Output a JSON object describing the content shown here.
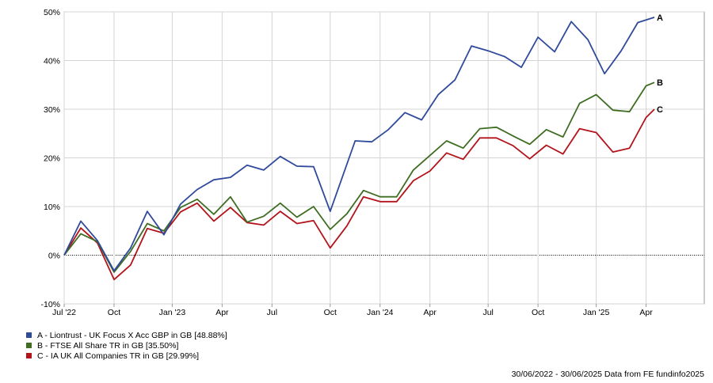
{
  "chart_data": {
    "type": "line",
    "title": "",
    "xlabel": "",
    "ylabel": "",
    "ylim": [
      -10,
      50
    ],
    "yticks": [
      -10,
      0,
      10,
      20,
      30,
      40,
      50
    ],
    "ytick_labels": [
      "-10%",
      "0%",
      "10%",
      "20%",
      "30%",
      "40%",
      "50%"
    ],
    "xtick_labels": [
      {
        "index": 0,
        "label": "Jul '22"
      },
      {
        "index": 6,
        "label": "Oct"
      },
      {
        "index": 13,
        "label": "Jan '23"
      },
      {
        "index": 19,
        "label": "Apr"
      },
      {
        "index": 25,
        "label": "Jul"
      },
      {
        "index": 32,
        "label": "Oct"
      },
      {
        "index": 38,
        "label": "Jan '24"
      },
      {
        "index": 44,
        "label": "Apr"
      },
      {
        "index": 51,
        "label": "Jul"
      },
      {
        "index": 57,
        "label": "Oct"
      },
      {
        "index": 64,
        "label": "Jan '25"
      },
      {
        "index": 70,
        "label": "Apr"
      }
    ],
    "x_count": 78,
    "grid": true,
    "legend_position": "bottom-left",
    "series": [
      {
        "name": "A - Liontrust - UK Focus X Acc GBP in GB [48.88%]",
        "end_label": "A",
        "color": "#2f4a9b",
        "points": [
          [
            0,
            0
          ],
          [
            2,
            7.0
          ],
          [
            4,
            3
          ],
          [
            6,
            -3.2
          ],
          [
            8,
            1.5
          ],
          [
            10,
            9.0
          ],
          [
            12,
            4.2
          ],
          [
            14,
            10.5
          ],
          [
            16,
            13.5
          ],
          [
            18,
            15.5
          ],
          [
            20,
            16.0
          ],
          [
            22,
            18.5
          ],
          [
            24,
            17.5
          ],
          [
            26,
            20.3
          ],
          [
            28,
            18.3
          ],
          [
            30,
            18.2
          ],
          [
            32,
            9.0
          ],
          [
            35,
            23.5
          ],
          [
            37,
            23.3
          ],
          [
            39,
            25.8
          ],
          [
            41,
            29.3
          ],
          [
            43,
            27.8
          ],
          [
            45,
            33.0
          ],
          [
            47,
            36.0
          ],
          [
            49,
            43.0
          ],
          [
            51,
            42.0
          ],
          [
            53,
            40.8
          ],
          [
            55,
            38.6
          ],
          [
            57,
            44.8
          ],
          [
            59,
            41.8
          ],
          [
            61,
            48.0
          ],
          [
            63,
            44.3
          ],
          [
            65,
            37.3
          ],
          [
            67,
            42.0
          ],
          [
            69,
            47.8
          ],
          [
            71,
            48.88
          ]
        ]
      },
      {
        "name": "B - FTSE All Share TR in GB [35.50%]",
        "end_label": "B",
        "color": "#3f6d22",
        "points": [
          [
            0,
            0
          ],
          [
            2,
            4.4
          ],
          [
            4,
            2.8
          ],
          [
            6,
            -3.5
          ],
          [
            8,
            0.8
          ],
          [
            10,
            6.5
          ],
          [
            12,
            5.0
          ],
          [
            14,
            9.8
          ],
          [
            16,
            11.5
          ],
          [
            18,
            8.4
          ],
          [
            20,
            12.0
          ],
          [
            22,
            6.8
          ],
          [
            24,
            8.0
          ],
          [
            26,
            10.7
          ],
          [
            28,
            7.8
          ],
          [
            30,
            10.0
          ],
          [
            32,
            5.3
          ],
          [
            34,
            8.5
          ],
          [
            36,
            13.3
          ],
          [
            38,
            12.0
          ],
          [
            40,
            12.0
          ],
          [
            42,
            17.5
          ],
          [
            44,
            20.5
          ],
          [
            46,
            23.5
          ],
          [
            48,
            22.0
          ],
          [
            50,
            26.0
          ],
          [
            52,
            26.3
          ],
          [
            54,
            24.5
          ],
          [
            56,
            22.8
          ],
          [
            58,
            25.8
          ],
          [
            60,
            24.3
          ],
          [
            62,
            31.2
          ],
          [
            64,
            33.0
          ],
          [
            66,
            29.8
          ],
          [
            68,
            29.5
          ],
          [
            70,
            34.8
          ],
          [
            71,
            35.5
          ]
        ]
      },
      {
        "name": "C - IA UK All Companies TR in GB [29.99%]",
        "end_label": "C",
        "color": "#b3141b",
        "points": [
          [
            0,
            0
          ],
          [
            2,
            5.6
          ],
          [
            4,
            2.5
          ],
          [
            6,
            -5.0
          ],
          [
            8,
            -2.0
          ],
          [
            10,
            5.5
          ],
          [
            12,
            4.5
          ],
          [
            14,
            8.9
          ],
          [
            16,
            10.7
          ],
          [
            18,
            7.0
          ],
          [
            20,
            9.8
          ],
          [
            22,
            6.7
          ],
          [
            24,
            6.2
          ],
          [
            26,
            9.0
          ],
          [
            28,
            6.5
          ],
          [
            30,
            7.1
          ],
          [
            32,
            1.5
          ],
          [
            34,
            6.0
          ],
          [
            36,
            12.0
          ],
          [
            38,
            11.0
          ],
          [
            40,
            11.0
          ],
          [
            42,
            15.3
          ],
          [
            44,
            17.3
          ],
          [
            46,
            21.0
          ],
          [
            48,
            19.7
          ],
          [
            50,
            24.1
          ],
          [
            52,
            24.1
          ],
          [
            54,
            22.5
          ],
          [
            56,
            19.8
          ],
          [
            58,
            22.6
          ],
          [
            60,
            20.8
          ],
          [
            62,
            26.0
          ],
          [
            64,
            25.2
          ],
          [
            66,
            21.2
          ],
          [
            68,
            22.0
          ],
          [
            70,
            28.3
          ],
          [
            71,
            29.99
          ]
        ]
      }
    ]
  },
  "legend": {
    "items": [
      {
        "label": "A - Liontrust - UK Focus X Acc GBP in GB [48.88%]",
        "color": "#2f4a9b"
      },
      {
        "label": "B - FTSE All Share TR in GB [35.50%]",
        "color": "#3f6d22"
      },
      {
        "label": "C - IA UK All Companies TR in GB [29.99%]",
        "color": "#b3141b"
      }
    ]
  },
  "footer": {
    "text": "30/06/2022 - 30/06/2025 Data from FE fundinfo2025"
  }
}
